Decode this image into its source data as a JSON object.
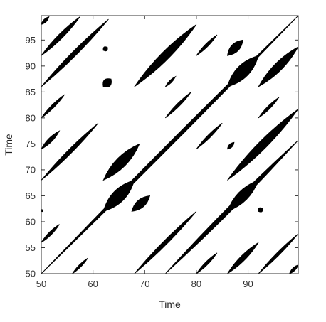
{
  "chart_data": {
    "type": "scatter",
    "title": "",
    "xlabel": "Time",
    "ylabel": "Time",
    "xlim": [
      50,
      99.7
    ],
    "ylim": [
      50,
      99.7
    ],
    "x_ticks": [
      50,
      60,
      70,
      80,
      90
    ],
    "y_ticks": [
      50,
      55,
      60,
      65,
      70,
      75,
      80,
      85,
      90,
      95
    ],
    "grid": false,
    "legend": "none",
    "colors": {
      "marks": "#000000",
      "axes": "#333333",
      "background": "#ffffff"
    },
    "series": [
      {
        "points": [],
        "bands": [
          {
            "from": [
              50.0,
              50.0
            ],
            "to": [
              99.7,
              99.7
            ],
            "width": 0.7
          },
          {
            "from": [
              50.0,
              56.0
            ],
            "to": [
              53.5,
              59.5
            ],
            "width": 0.6
          },
          {
            "from": [
              50.0,
              62.0
            ],
            "to": [
              50.3,
              62.3
            ],
            "width": 0.5
          },
          {
            "from": [
              50.0,
              68.0
            ],
            "to": [
              61.0,
              79.0
            ],
            "width": 0.8
          },
          {
            "from": [
              50.0,
              74.0
            ],
            "to": [
              53.5,
              77.5
            ],
            "width": 0.8
          },
          {
            "from": [
              50.0,
              80.0
            ],
            "to": [
              54.5,
              84.5
            ],
            "width": 0.6
          },
          {
            "from": [
              50.0,
              86.0
            ],
            "to": [
              63.0,
              99.0
            ],
            "width": 0.9
          },
          {
            "from": [
              50.0,
              92.0
            ],
            "to": [
              57.5,
              99.5
            ],
            "width": 0.9
          },
          {
            "from": [
              50.0,
              98.0
            ],
            "to": [
              51.5,
              99.5
            ],
            "width": 0.6
          },
          {
            "from": [
              56.0,
              50.0
            ],
            "to": [
              59.0,
              53.0
            ],
            "width": 0.5
          },
          {
            "from": [
              62.0,
              68.0
            ],
            "to": [
              69.0,
              75.0
            ],
            "width": 2.0
          },
          {
            "from": [
              62.0,
              62.0
            ],
            "to": [
              68.0,
              68.0
            ],
            "width": 2.4
          },
          {
            "from": [
              62.0,
              86.0
            ],
            "to": [
              63.5,
              87.5
            ],
            "width": 1.6
          },
          {
            "from": [
              62.0,
              93.0
            ],
            "to": [
              62.8,
              93.6
            ],
            "width": 0.9
          },
          {
            "from": [
              67.5,
              62.0
            ],
            "to": [
              71.0,
              65.0
            ],
            "width": 1.6
          },
          {
            "from": [
              68.0,
              50.0
            ],
            "to": [
              80.0,
              62.0
            ],
            "width": 0.8
          },
          {
            "from": [
              68.0,
              86.0
            ],
            "to": [
              80.0,
              98.0
            ],
            "width": 1.6
          },
          {
            "from": [
              74.0,
              50.0
            ],
            "to": [
              99.7,
              75.7
            ],
            "width": 0.9
          },
          {
            "from": [
              74.0,
              80.0
            ],
            "to": [
              79.0,
              85.0
            ],
            "width": 0.6
          },
          {
            "from": [
              74.0,
              86.0
            ],
            "to": [
              76.0,
              88.0
            ],
            "width": 0.5
          },
          {
            "from": [
              80.0,
              50.0
            ],
            "to": [
              84.0,
              54.0
            ],
            "width": 0.6
          },
          {
            "from": [
              80.0,
              74.0
            ],
            "to": [
              85.0,
              79.0
            ],
            "width": 0.6
          },
          {
            "from": [
              80.0,
              92.0
            ],
            "to": [
              84.0,
              96.0
            ],
            "width": 0.6
          },
          {
            "from": [
              86.0,
              50.0
            ],
            "to": [
              92.0,
              56.0
            ],
            "width": 1.0
          },
          {
            "from": [
              86.0,
              62.0
            ],
            "to": [
              92.0,
              68.0
            ],
            "width": 2.0
          },
          {
            "from": [
              86.0,
              68.0
            ],
            "to": [
              99.7,
              81.7
            ],
            "width": 1.6
          },
          {
            "from": [
              86.0,
              74.0
            ],
            "to": [
              87.3,
              75.3
            ],
            "width": 0.7
          },
          {
            "from": [
              86.0,
              86.0
            ],
            "to": [
              92.0,
              92.0
            ],
            "width": 2.4
          },
          {
            "from": [
              86.0,
              92.0
            ],
            "to": [
              89.0,
              95.0
            ],
            "width": 1.6
          },
          {
            "from": [
              92.0,
              62.0
            ],
            "to": [
              92.8,
              62.6
            ],
            "width": 0.9
          },
          {
            "from": [
              92.0,
              80.0
            ],
            "to": [
              96.0,
              84.0
            ],
            "width": 0.6
          },
          {
            "from": [
              92.0,
              86.0
            ],
            "to": [
              99.7,
              93.7
            ],
            "width": 1.6
          },
          {
            "from": [
              92.0,
              50.0
            ],
            "to": [
              99.7,
              57.7
            ],
            "width": 0.6
          },
          {
            "from": [
              98.0,
              50.0
            ],
            "to": [
              99.7,
              51.7
            ],
            "width": 0.6
          }
        ]
      }
    ]
  }
}
